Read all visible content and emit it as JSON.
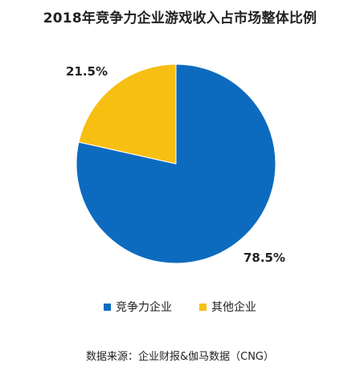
{
  "chart_data": {
    "type": "pie",
    "title": "2018年竞争力企业游戏收入占市场整体比例",
    "categories": [
      "竞争力企业",
      "其他企业"
    ],
    "values": [
      78.5,
      21.5
    ],
    "labels": [
      "78.5%",
      "21.5%"
    ],
    "colors": [
      "#0D6BBF",
      "#F7BF12"
    ],
    "legend_position": "bottom"
  },
  "source": "数据来源：企业财报&伽马数据（CNG）"
}
